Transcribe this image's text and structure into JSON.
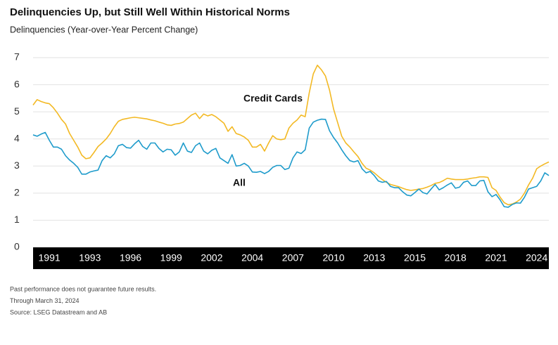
{
  "chart_data": {
    "type": "line",
    "title": "Delinquencies Up, but Still Well Within Historical Norms",
    "subtitle": "Delinquencies (Year-over-Year Percent Change)",
    "categories": [
      null,
      null,
      null,
      null,
      "1991",
      null,
      null,
      null,
      null,
      null,
      null,
      null,
      null,
      null,
      "1993",
      null,
      null,
      null,
      null,
      null,
      null,
      null,
      null,
      null,
      "1996",
      null,
      null,
      null,
      null,
      null,
      null,
      null,
      null,
      null,
      "1999",
      null,
      null,
      null,
      null,
      null,
      null,
      null,
      null,
      null,
      "2002",
      null,
      null,
      null,
      null,
      null,
      null,
      null,
      null,
      null,
      "2004",
      null,
      null,
      null,
      null,
      null,
      null,
      null,
      null,
      null,
      "2007",
      null,
      null,
      null,
      null,
      null,
      null,
      null,
      null,
      null,
      "2010",
      null,
      null,
      null,
      null,
      null,
      null,
      null,
      null,
      null,
      "2013",
      null,
      null,
      null,
      null,
      null,
      null,
      null,
      null,
      null,
      "2015",
      null,
      null,
      null,
      null,
      null,
      null,
      null,
      null,
      null,
      "2018",
      null,
      null,
      null,
      null,
      null,
      null,
      null,
      null,
      null,
      "2021",
      null,
      null,
      null,
      null,
      null,
      null,
      null,
      null,
      null,
      "2024",
      null,
      null,
      null
    ],
    "series": [
      {
        "name": "Credit Cards",
        "color": "#f3b924",
        "values": [
          5.25,
          5.45,
          5.38,
          5.33,
          5.3,
          5.15,
          4.95,
          4.72,
          4.55,
          4.2,
          3.95,
          3.7,
          3.4,
          3.27,
          3.3,
          3.5,
          3.72,
          3.85,
          4.0,
          4.2,
          4.45,
          4.65,
          4.72,
          4.75,
          4.78,
          4.8,
          4.78,
          4.76,
          4.74,
          4.7,
          4.67,
          4.62,
          4.58,
          4.52,
          4.5,
          4.55,
          4.57,
          4.62,
          4.75,
          4.88,
          4.95,
          4.75,
          4.92,
          4.85,
          4.9,
          4.82,
          4.7,
          4.58,
          4.28,
          4.45,
          4.2,
          4.15,
          4.07,
          3.95,
          3.7,
          3.7,
          3.8,
          3.55,
          3.85,
          4.12,
          4.0,
          3.97,
          4.0,
          4.4,
          4.58,
          4.7,
          4.88,
          4.82,
          5.7,
          6.4,
          6.72,
          6.55,
          6.32,
          5.8,
          5.1,
          4.6,
          4.1,
          3.85,
          3.7,
          3.52,
          3.35,
          3.1,
          2.92,
          2.85,
          2.75,
          2.62,
          2.5,
          2.4,
          2.32,
          2.28,
          2.24,
          2.18,
          2.13,
          2.1,
          2.12,
          2.15,
          2.17,
          2.22,
          2.28,
          2.36,
          2.39,
          2.46,
          2.55,
          2.52,
          2.5,
          2.5,
          2.5,
          2.52,
          2.55,
          2.57,
          2.6,
          2.6,
          2.58,
          2.2,
          2.1,
          1.85,
          1.65,
          1.57,
          1.6,
          1.67,
          1.78,
          2.0,
          2.3,
          2.55,
          2.9,
          3.0,
          3.08,
          3.15
        ]
      },
      {
        "name": "All",
        "color": "#1e9bcb",
        "values": [
          4.15,
          4.1,
          4.18,
          4.24,
          3.95,
          3.7,
          3.7,
          3.62,
          3.38,
          3.22,
          3.1,
          2.95,
          2.7,
          2.7,
          2.78,
          2.82,
          2.85,
          3.2,
          3.38,
          3.3,
          3.45,
          3.75,
          3.8,
          3.68,
          3.66,
          3.82,
          3.95,
          3.72,
          3.62,
          3.85,
          3.85,
          3.65,
          3.52,
          3.62,
          3.6,
          3.4,
          3.52,
          3.85,
          3.55,
          3.5,
          3.75,
          3.85,
          3.55,
          3.45,
          3.58,
          3.65,
          3.3,
          3.2,
          3.1,
          3.42,
          3.0,
          3.02,
          3.1,
          3.0,
          2.78,
          2.77,
          2.8,
          2.72,
          2.8,
          2.95,
          3.02,
          3.02,
          2.87,
          2.92,
          3.3,
          3.52,
          3.46,
          3.6,
          4.4,
          4.62,
          4.69,
          4.73,
          4.72,
          4.3,
          4.05,
          3.85,
          3.6,
          3.38,
          3.2,
          3.15,
          3.2,
          2.9,
          2.75,
          2.8,
          2.65,
          2.45,
          2.4,
          2.43,
          2.25,
          2.2,
          2.2,
          2.05,
          1.93,
          1.9,
          2.02,
          2.15,
          2.02,
          1.97,
          2.15,
          2.32,
          2.12,
          2.2,
          2.3,
          2.38,
          2.18,
          2.22,
          2.4,
          2.45,
          2.28,
          2.28,
          2.45,
          2.47,
          2.05,
          1.87,
          1.95,
          1.75,
          1.5,
          1.48,
          1.58,
          1.64,
          1.63,
          1.85,
          2.15,
          2.2,
          2.25,
          2.45,
          2.75,
          2.65
        ]
      }
    ],
    "ylim": [
      0,
      7
    ],
    "yticks": [
      0,
      1,
      2,
      3,
      4,
      5,
      6,
      7
    ],
    "grid": true,
    "notes": [
      "Past performance does not guarantee future results.",
      "Through March 31, 2024",
      "Source: LSEG Datastream and AB"
    ]
  }
}
